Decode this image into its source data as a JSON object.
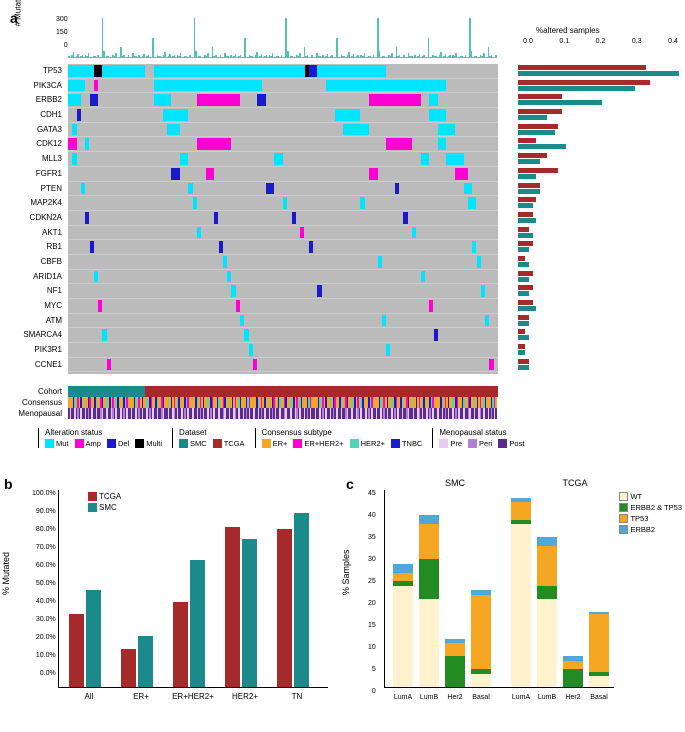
{
  "colors": {
    "mut": "#00e5ff",
    "amp": "#ff00d4",
    "del": "#1a1acc",
    "multi": "#000000",
    "none": "#bababa",
    "smc": "#1a8a8a",
    "tcga": "#a52a2a",
    "er": "#f5a623",
    "erher2": "#ff00d4",
    "her2": "#4fd4b8",
    "tnbc": "#1a1acc",
    "pre": "#e6ccf5",
    "peri": "#b380d9",
    "post": "#5a2d8c",
    "wt": "#fff2cc",
    "erbb2_tp53": "#228b22",
    "tp53": "#f5a623",
    "erbb2": "#4fa8d9",
    "mutbar": "#4fc4b0"
  },
  "panelA": {
    "label": "a",
    "mut_axis_label": "# Mutations",
    "mut_axis_ticks": [
      "300",
      "150",
      "0"
    ],
    "alt_title": "%altered samples",
    "alt_ticks": [
      "0.0",
      "0.1",
      "0.2",
      "0.3",
      "0.4"
    ],
    "genes": [
      "TP53",
      "PIK3CA",
      "ERBB2",
      "CDH1",
      "GATA3",
      "CDK12",
      "MLL3",
      "FGFR1",
      "PTEN",
      "MAP2K4",
      "CDKN2A",
      "AKT1",
      "RB1",
      "CBFB",
      "ARID1A",
      "NF1",
      "MYC",
      "ATM",
      "SMARCA4",
      "PIK3R1",
      "CCNE1"
    ],
    "alt_fractions_tcga": [
      0.35,
      0.36,
      0.12,
      0.12,
      0.11,
      0.05,
      0.08,
      0.11,
      0.06,
      0.05,
      0.04,
      0.03,
      0.04,
      0.02,
      0.04,
      0.04,
      0.04,
      0.03,
      0.02,
      0.02,
      0.03
    ],
    "alt_fractions_smc": [
      0.44,
      0.32,
      0.23,
      0.08,
      0.1,
      0.13,
      0.06,
      0.05,
      0.06,
      0.04,
      0.05,
      0.04,
      0.03,
      0.03,
      0.03,
      0.03,
      0.05,
      0.03,
      0.03,
      0.02,
      0.03
    ],
    "track_labels": [
      "Cohort",
      "Consensus",
      "Menopausal"
    ],
    "cohort_split": 0.18,
    "legends": {
      "alteration": {
        "title": "Alteration status",
        "items": [
          {
            "label": "Mut",
            "color": "mut"
          },
          {
            "label": "Amp",
            "color": "amp"
          },
          {
            "label": "Del",
            "color": "del"
          },
          {
            "label": "Multi",
            "color": "multi"
          }
        ]
      },
      "dataset": {
        "title": "Dataset",
        "items": [
          {
            "label": "SMC",
            "color": "smc"
          },
          {
            "label": "TCGA",
            "color": "tcga"
          }
        ]
      },
      "consensus": {
        "title": "Consensus subtype",
        "items": [
          {
            "label": "ER+",
            "color": "er"
          },
          {
            "label": "ER+HER2+",
            "color": "erher2"
          },
          {
            "label": "HER2+",
            "color": "her2"
          },
          {
            "label": "TNBC",
            "color": "tnbc"
          }
        ]
      },
      "menopausal": {
        "title": "Menopausal status",
        "items": [
          {
            "label": "Pre",
            "color": "pre"
          },
          {
            "label": "Peri",
            "color": "peri"
          },
          {
            "label": "Post",
            "color": "post"
          }
        ]
      }
    },
    "mut_heights": [
      18,
      10,
      22,
      45,
      9,
      15,
      30,
      8,
      12,
      25,
      11,
      20,
      14,
      40,
      10,
      7,
      12,
      16,
      9,
      22,
      8,
      10,
      300,
      50,
      11,
      14,
      18,
      9,
      6,
      22,
      12,
      35,
      7,
      10,
      80,
      14,
      20,
      9,
      6,
      25,
      11,
      8,
      40,
      12,
      18,
      7,
      22,
      10,
      14,
      30,
      8,
      12,
      20,
      9,
      6,
      150,
      11,
      7,
      22,
      14
    ],
    "heatmap_rows": [
      [
        {
          "s": 0,
          "e": 6,
          "c": "mut"
        },
        {
          "s": 6,
          "e": 8,
          "c": "multi"
        },
        {
          "s": 8,
          "e": 18,
          "c": "mut"
        },
        {
          "s": 20,
          "e": 55,
          "c": "mut"
        },
        {
          "s": 55,
          "e": 56,
          "c": "multi"
        },
        {
          "s": 56,
          "e": 58,
          "c": "del"
        },
        {
          "s": 58,
          "e": 74,
          "c": "mut"
        }
      ],
      [
        {
          "s": 0,
          "e": 4,
          "c": "mut"
        },
        {
          "s": 6,
          "e": 7,
          "c": "amp"
        },
        {
          "s": 20,
          "e": 45,
          "c": "mut"
        },
        {
          "s": 60,
          "e": 88,
          "c": "mut"
        }
      ],
      [
        {
          "s": 0,
          "e": 3,
          "c": "mut"
        },
        {
          "s": 5,
          "e": 7,
          "c": "del"
        },
        {
          "s": 20,
          "e": 24,
          "c": "mut"
        },
        {
          "s": 30,
          "e": 40,
          "c": "amp"
        },
        {
          "s": 44,
          "e": 46,
          "c": "del"
        },
        {
          "s": 70,
          "e": 82,
          "c": "amp"
        },
        {
          "s": 84,
          "e": 86,
          "c": "mut"
        }
      ],
      [
        {
          "s": 2,
          "e": 3,
          "c": "del"
        },
        {
          "s": 22,
          "e": 28,
          "c": "mut"
        },
        {
          "s": 62,
          "e": 68,
          "c": "mut"
        },
        {
          "s": 84,
          "e": 88,
          "c": "mut"
        }
      ],
      [
        {
          "s": 1,
          "e": 2,
          "c": "mut"
        },
        {
          "s": 23,
          "e": 26,
          "c": "mut"
        },
        {
          "s": 64,
          "e": 70,
          "c": "mut"
        },
        {
          "s": 86,
          "e": 90,
          "c": "mut"
        }
      ],
      [
        {
          "s": 0,
          "e": 2,
          "c": "amp"
        },
        {
          "s": 4,
          "e": 5,
          "c": "mut"
        },
        {
          "s": 30,
          "e": 38,
          "c": "amp"
        },
        {
          "s": 74,
          "e": 80,
          "c": "amp"
        },
        {
          "s": 86,
          "e": 88,
          "c": "mut"
        }
      ],
      [
        {
          "s": 1,
          "e": 2,
          "c": "mut"
        },
        {
          "s": 26,
          "e": 28,
          "c": "mut"
        },
        {
          "s": 48,
          "e": 50,
          "c": "mut"
        },
        {
          "s": 82,
          "e": 84,
          "c": "mut"
        },
        {
          "s": 88,
          "e": 92,
          "c": "mut"
        }
      ],
      [
        {
          "s": 24,
          "e": 26,
          "c": "del"
        },
        {
          "s": 32,
          "e": 34,
          "c": "amp"
        },
        {
          "s": 70,
          "e": 72,
          "c": "amp"
        },
        {
          "s": 90,
          "e": 93,
          "c": "amp"
        }
      ],
      [
        {
          "s": 3,
          "e": 4,
          "c": "mut"
        },
        {
          "s": 28,
          "e": 29,
          "c": "mut"
        },
        {
          "s": 46,
          "e": 48,
          "c": "del"
        },
        {
          "s": 76,
          "e": 77,
          "c": "del"
        },
        {
          "s": 92,
          "e": 94,
          "c": "mut"
        }
      ],
      [
        {
          "s": 29,
          "e": 30,
          "c": "mut"
        },
        {
          "s": 50,
          "e": 51,
          "c": "mut"
        },
        {
          "s": 68,
          "e": 69,
          "c": "mut"
        },
        {
          "s": 93,
          "e": 95,
          "c": "mut"
        }
      ],
      [
        {
          "s": 4,
          "e": 5,
          "c": "del"
        },
        {
          "s": 34,
          "e": 35,
          "c": "del"
        },
        {
          "s": 52,
          "e": 53,
          "c": "del"
        },
        {
          "s": 78,
          "e": 79,
          "c": "del"
        }
      ],
      [
        {
          "s": 30,
          "e": 31,
          "c": "mut"
        },
        {
          "s": 54,
          "e": 55,
          "c": "amp"
        },
        {
          "s": 80,
          "e": 81,
          "c": "mut"
        }
      ],
      [
        {
          "s": 5,
          "e": 6,
          "c": "del"
        },
        {
          "s": 35,
          "e": 36,
          "c": "del"
        },
        {
          "s": 56,
          "e": 57,
          "c": "del"
        },
        {
          "s": 94,
          "e": 95,
          "c": "mut"
        }
      ],
      [
        {
          "s": 36,
          "e": 37,
          "c": "mut"
        },
        {
          "s": 72,
          "e": 73,
          "c": "mut"
        },
        {
          "s": 95,
          "e": 96,
          "c": "mut"
        }
      ],
      [
        {
          "s": 6,
          "e": 7,
          "c": "mut"
        },
        {
          "s": 37,
          "e": 38,
          "c": "mut"
        },
        {
          "s": 82,
          "e": 83,
          "c": "mut"
        }
      ],
      [
        {
          "s": 38,
          "e": 39,
          "c": "mut"
        },
        {
          "s": 58,
          "e": 59,
          "c": "del"
        },
        {
          "s": 96,
          "e": 97,
          "c": "mut"
        }
      ],
      [
        {
          "s": 7,
          "e": 8,
          "c": "amp"
        },
        {
          "s": 39,
          "e": 40,
          "c": "amp"
        },
        {
          "s": 84,
          "e": 85,
          "c": "amp"
        }
      ],
      [
        {
          "s": 40,
          "e": 41,
          "c": "mut"
        },
        {
          "s": 73,
          "e": 74,
          "c": "mut"
        },
        {
          "s": 97,
          "e": 98,
          "c": "mut"
        }
      ],
      [
        {
          "s": 8,
          "e": 9,
          "c": "mut"
        },
        {
          "s": 41,
          "e": 42,
          "c": "mut"
        },
        {
          "s": 85,
          "e": 86,
          "c": "del"
        }
      ],
      [
        {
          "s": 42,
          "e": 43,
          "c": "mut"
        },
        {
          "s": 74,
          "e": 75,
          "c": "mut"
        }
      ],
      [
        {
          "s": 9,
          "e": 10,
          "c": "amp"
        },
        {
          "s": 43,
          "e": 44,
          "c": "amp"
        },
        {
          "s": 98,
          "e": 99,
          "c": "amp"
        }
      ]
    ],
    "consensus_pattern": [
      "er",
      "er",
      "er",
      "tnbc",
      "her2",
      "er",
      "erher2",
      "er",
      "tnbc",
      "er",
      "er",
      "her2",
      "er",
      "tnbc",
      "erher2",
      "er",
      "er",
      "tnbc",
      "her2",
      "er",
      "er",
      "erher2",
      "tnbc",
      "er",
      "er",
      "her2",
      "er",
      "tnbc",
      "er",
      "erher2",
      "er",
      "her2",
      "tnbc",
      "er",
      "er",
      "er",
      "tnbc",
      "her2",
      "erher2",
      "er"
    ],
    "menopausal_pattern": [
      "post",
      "pre",
      "post",
      "post",
      "pre",
      "post",
      "peri",
      "post",
      "pre",
      "post",
      "post",
      "pre",
      "post",
      "peri",
      "post",
      "pre",
      "post",
      "post",
      "pre",
      "post",
      "post",
      "peri",
      "pre",
      "post",
      "post",
      "pre",
      "post",
      "post",
      "pre",
      "peri",
      "post",
      "pre",
      "post",
      "post",
      "pre",
      "post",
      "peri",
      "post",
      "pre",
      "post"
    ]
  },
  "panelB": {
    "label": "b",
    "y_label": "% Mutated",
    "y_ticks": [
      "100.0%",
      "90.0%",
      "80.0%",
      "70.0%",
      "60.0%",
      "50.0%",
      "40.0%",
      "30.0%",
      "20.0%",
      "10.0%",
      "0.0%"
    ],
    "legend": [
      {
        "label": "TCGA",
        "color": "tcga"
      },
      {
        "label": "SMC",
        "color": "smc"
      }
    ],
    "groups": [
      {
        "label": "All",
        "tcga": 37,
        "smc": 49
      },
      {
        "label": "ER+",
        "tcga": 19,
        "smc": 26
      },
      {
        "label": "ER+HER2+",
        "tcga": 43,
        "smc": 64
      },
      {
        "label": "HER2+",
        "tcga": 81,
        "smc": 75
      },
      {
        "label": "TN",
        "tcga": 80,
        "smc": 88
      }
    ]
  },
  "panelC": {
    "label": "c",
    "y_label": "% Samples",
    "y_ticks": [
      "45",
      "40",
      "35",
      "30",
      "25",
      "20",
      "15",
      "10",
      "5",
      "0"
    ],
    "legend": [
      {
        "label": "WT",
        "color": "wt"
      },
      {
        "label": "ERBB2 & TP53",
        "color": "erbb2_tp53"
      },
      {
        "label": "TP53",
        "color": "tp53"
      },
      {
        "label": "ERBB2",
        "color": "erbb2"
      }
    ],
    "group_labels": [
      "SMC",
      "TCGA"
    ],
    "bars": [
      {
        "label": "LumA",
        "stack": [
          {
            "c": "erbb2",
            "v": 2
          },
          {
            "c": "tp53",
            "v": 2
          },
          {
            "c": "erbb2_tp53",
            "v": 1
          },
          {
            "c": "wt",
            "v": 23
          }
        ]
      },
      {
        "label": "LumB",
        "stack": [
          {
            "c": "erbb2",
            "v": 2
          },
          {
            "c": "tp53",
            "v": 8
          },
          {
            "c": "erbb2_tp53",
            "v": 9
          },
          {
            "c": "wt",
            "v": 20
          }
        ]
      },
      {
        "label": "Her2",
        "stack": [
          {
            "c": "erbb2",
            "v": 1
          },
          {
            "c": "tp53",
            "v": 3
          },
          {
            "c": "erbb2_tp53",
            "v": 7
          },
          {
            "c": "wt",
            "v": 0
          }
        ]
      },
      {
        "label": "Basal",
        "stack": [
          {
            "c": "erbb2",
            "v": 1
          },
          {
            "c": "tp53",
            "v": 17
          },
          {
            "c": "erbb2_tp53",
            "v": 1
          },
          {
            "c": "wt",
            "v": 3
          }
        ]
      },
      {
        "label": "LumA",
        "stack": [
          {
            "c": "erbb2",
            "v": 1
          },
          {
            "c": "tp53",
            "v": 4
          },
          {
            "c": "erbb2_tp53",
            "v": 1
          },
          {
            "c": "wt",
            "v": 37
          }
        ]
      },
      {
        "label": "LumB",
        "stack": [
          {
            "c": "erbb2",
            "v": 2
          },
          {
            "c": "tp53",
            "v": 9
          },
          {
            "c": "erbb2_tp53",
            "v": 3
          },
          {
            "c": "wt",
            "v": 20
          }
        ]
      },
      {
        "label": "Her2",
        "stack": [
          {
            "c": "erbb2",
            "v": 1
          },
          {
            "c": "tp53",
            "v": 2
          },
          {
            "c": "erbb2_tp53",
            "v": 4
          },
          {
            "c": "wt",
            "v": 0
          }
        ]
      },
      {
        "label": "Basal",
        "stack": [
          {
            "c": "erbb2",
            "v": 0.5
          },
          {
            "c": "tp53",
            "v": 13
          },
          {
            "c": "erbb2_tp53",
            "v": 1
          },
          {
            "c": "wt",
            "v": 2.5
          }
        ]
      }
    ]
  }
}
